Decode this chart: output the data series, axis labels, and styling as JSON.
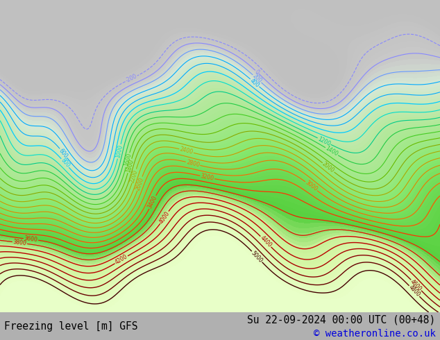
{
  "title_left": "Freezing level [m] GFS",
  "title_right": "Su 22-09-2024 00:00 UTC (00+48)",
  "copyright": "© weatheronline.co.uk",
  "bg_color": "#c8c8c8",
  "map_bg_color": "#e0e0e0",
  "footer_bg": "#b0b0b0",
  "title_fontsize": 10.5,
  "copyright_fontsize": 10.0,
  "copyright_color": "#0000dd",
  "title_color": "#000000",
  "date_color": "#000000",
  "fig_width": 6.34,
  "fig_height": 4.9,
  "dpi": 100
}
